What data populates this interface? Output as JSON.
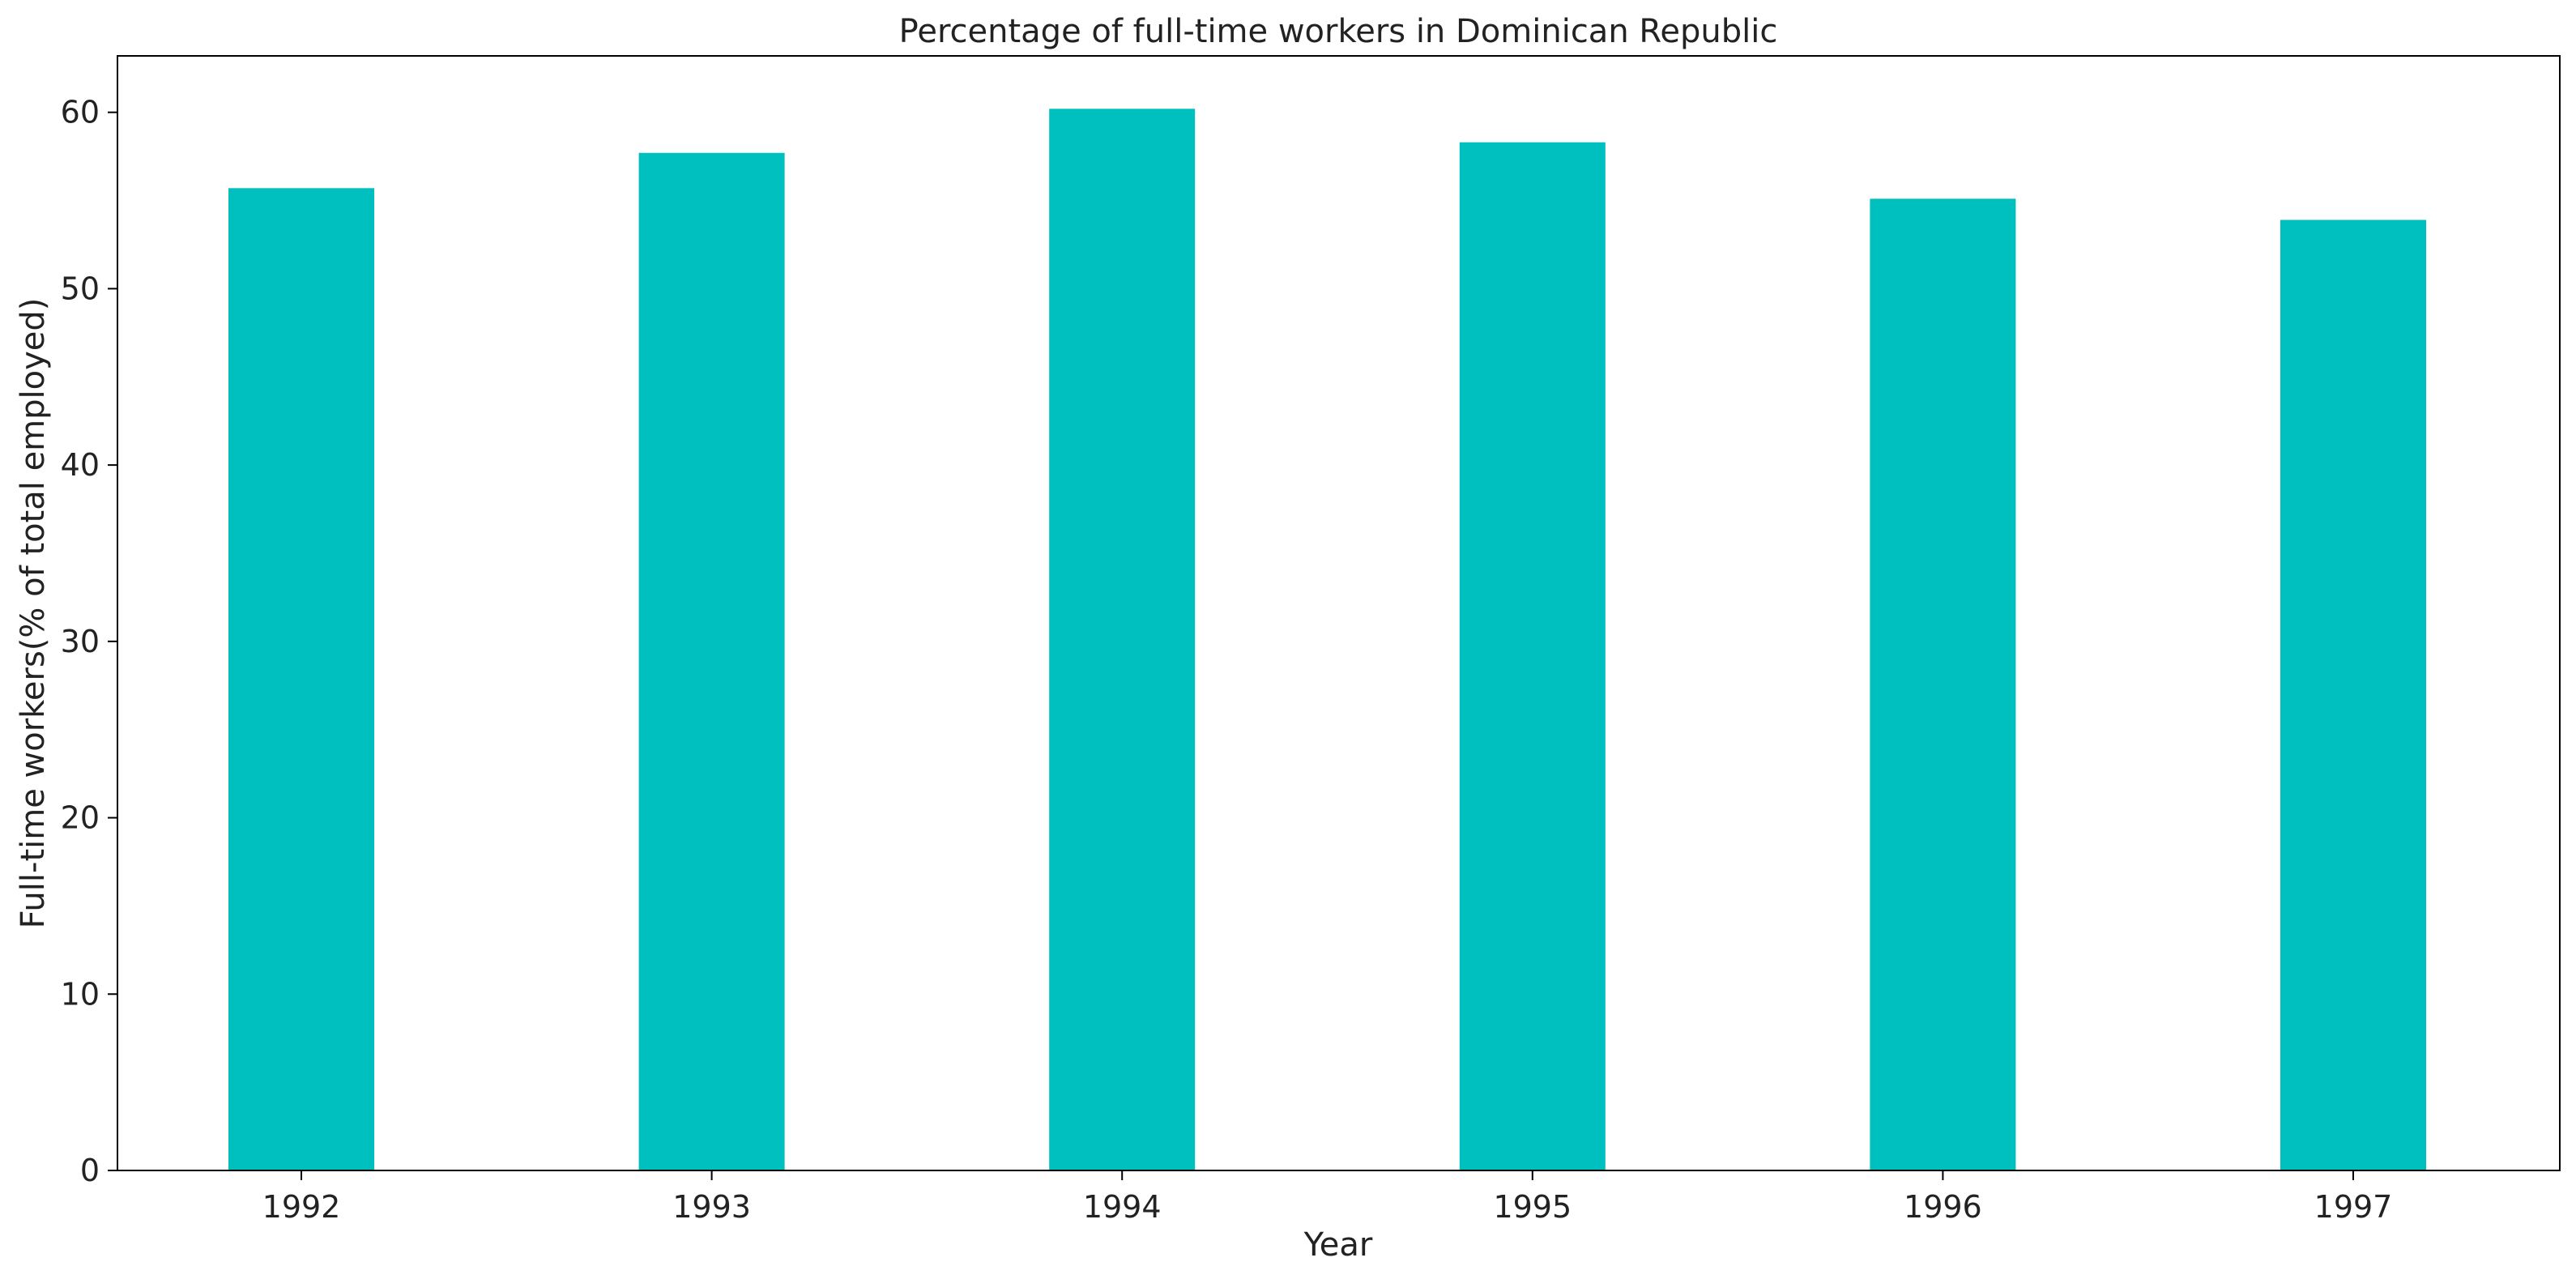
{
  "chart_data": {
    "type": "bar",
    "title": "Percentage of full-time workers in Dominican Republic",
    "xlabel": "Year",
    "ylabel": "Full-time workers(% of total employed)",
    "categories": [
      "1992",
      "1993",
      "1994",
      "1995",
      "1996",
      "1997"
    ],
    "values": [
      55.7,
      57.7,
      60.2,
      58.3,
      55.1,
      53.9
    ],
    "ylim": [
      0,
      63.2
    ],
    "yticks": [
      0,
      10,
      20,
      30,
      40,
      50,
      60
    ],
    "bar_color": "#00BFBF",
    "grid": false,
    "legend": "none"
  }
}
